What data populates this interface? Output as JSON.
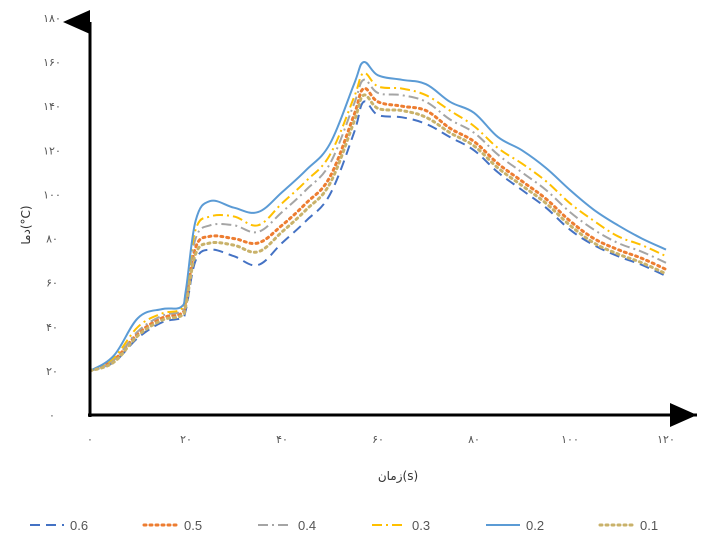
{
  "chart_data": {
    "type": "line",
    "xlabel": "زمان(s)",
    "ylabel": "دما(°C)",
    "xlim": [
      0,
      130
    ],
    "ylim": [
      0,
      180
    ],
    "x_ticks": [
      {
        "value": 0,
        "label": "۰"
      },
      {
        "value": 20,
        "label": "۲۰"
      },
      {
        "value": 40,
        "label": "۴۰"
      },
      {
        "value": 60,
        "label": "۶۰"
      },
      {
        "value": 80,
        "label": "۸۰"
      },
      {
        "value": 100,
        "label": "۱۰۰"
      },
      {
        "value": 120,
        "label": "۱۲۰"
      }
    ],
    "y_ticks": [
      {
        "value": 0,
        "label": "۰"
      },
      {
        "value": 20,
        "label": "۲۰"
      },
      {
        "value": 40,
        "label": "۴۰"
      },
      {
        "value": 60,
        "label": "۶۰"
      },
      {
        "value": 80,
        "label": "۸۰"
      },
      {
        "value": 100,
        "label": "۱۰۰"
      },
      {
        "value": 120,
        "label": "۱۲۰"
      },
      {
        "value": 140,
        "label": "۱۴۰"
      },
      {
        "value": 160,
        "label": "۱۶۰"
      },
      {
        "value": 180,
        "label": "۱۸۰"
      }
    ],
    "grid": false,
    "legend_position": "bottom",
    "series": [
      {
        "name": "0.6",
        "color": "#4472C4",
        "dash": "dash",
        "x": [
          0,
          5,
          10,
          15,
          19,
          20,
          22,
          25,
          30,
          35,
          40,
          45,
          50,
          55,
          57,
          60,
          65,
          70,
          75,
          80,
          85,
          90,
          95,
          100,
          105,
          110,
          115,
          120
        ],
        "y": [
          20,
          24,
          35,
          42,
          44,
          48,
          70,
          75,
          72,
          68,
          78,
          88,
          100,
          128,
          142,
          136,
          135,
          132,
          126,
          120,
          110,
          102,
          94,
          84,
          77,
          72,
          68,
          63
        ]
      },
      {
        "name": "0.5",
        "color": "#ED7D31",
        "dash": "dot",
        "x": [
          0,
          5,
          10,
          15,
          19,
          20,
          22,
          25,
          30,
          35,
          40,
          45,
          50,
          55,
          57,
          60,
          65,
          70,
          75,
          80,
          85,
          90,
          95,
          100,
          105,
          110,
          115,
          120
        ],
        "y": [
          20,
          25,
          37,
          44,
          46,
          52,
          76,
          81,
          80,
          78,
          86,
          96,
          108,
          136,
          148,
          142,
          140,
          138,
          130,
          124,
          114,
          106,
          98,
          88,
          80,
          75,
          71,
          66
        ]
      },
      {
        "name": "0.4",
        "color": "#A5A5A5",
        "dash": "dashdot",
        "x": [
          0,
          5,
          10,
          15,
          19,
          20,
          22,
          25,
          30,
          35,
          40,
          45,
          50,
          55,
          57,
          60,
          65,
          70,
          75,
          80,
          85,
          90,
          95,
          100,
          105,
          110,
          115,
          120
        ],
        "y": [
          20,
          25,
          38,
          45,
          47,
          54,
          80,
          86,
          86,
          83,
          92,
          102,
          114,
          141,
          152,
          146,
          145,
          142,
          134,
          128,
          118,
          110,
          102,
          92,
          84,
          78,
          74,
          69
        ]
      },
      {
        "name": "0.3",
        "color": "#FFC000",
        "dash": "dashdot",
        "x": [
          0,
          5,
          10,
          15,
          19,
          20,
          22,
          25,
          30,
          35,
          40,
          45,
          50,
          55,
          57,
          60,
          65,
          70,
          75,
          80,
          85,
          90,
          95,
          100,
          105,
          110,
          115,
          120
        ],
        "y": [
          20,
          26,
          40,
          46,
          48,
          56,
          84,
          90,
          90,
          86,
          96,
          106,
          118,
          144,
          155,
          149,
          148,
          145,
          138,
          131,
          121,
          114,
          106,
          96,
          88,
          81,
          77,
          72
        ]
      },
      {
        "name": "0.2",
        "color": "#5B9BD5",
        "dash": "solid",
        "x": [
          0,
          5,
          10,
          15,
          19,
          20,
          22,
          25,
          30,
          35,
          40,
          45,
          50,
          55,
          57,
          60,
          65,
          70,
          75,
          80,
          85,
          90,
          95,
          100,
          105,
          110,
          115,
          120
        ],
        "y": [
          20,
          27,
          44,
          48,
          49,
          57,
          88,
          97,
          94,
          92,
          101,
          111,
          123,
          150,
          160,
          154,
          152,
          150,
          142,
          137,
          126,
          120,
          112,
          102,
          93,
          86,
          80,
          75
        ]
      },
      {
        "name": "0.1",
        "color": "#C9B26A",
        "dash": "dot",
        "x": [
          0,
          5,
          10,
          15,
          19,
          20,
          22,
          25,
          30,
          35,
          40,
          45,
          50,
          55,
          57,
          60,
          65,
          70,
          75,
          80,
          85,
          90,
          95,
          100,
          105,
          110,
          115,
          120
        ],
        "y": [
          20,
          24,
          36,
          43,
          45,
          50,
          73,
          78,
          77,
          74,
          83,
          93,
          105,
          133,
          145,
          139,
          138,
          135,
          128,
          122,
          112,
          104,
          96,
          86,
          78,
          73,
          69,
          64
        ]
      }
    ]
  }
}
